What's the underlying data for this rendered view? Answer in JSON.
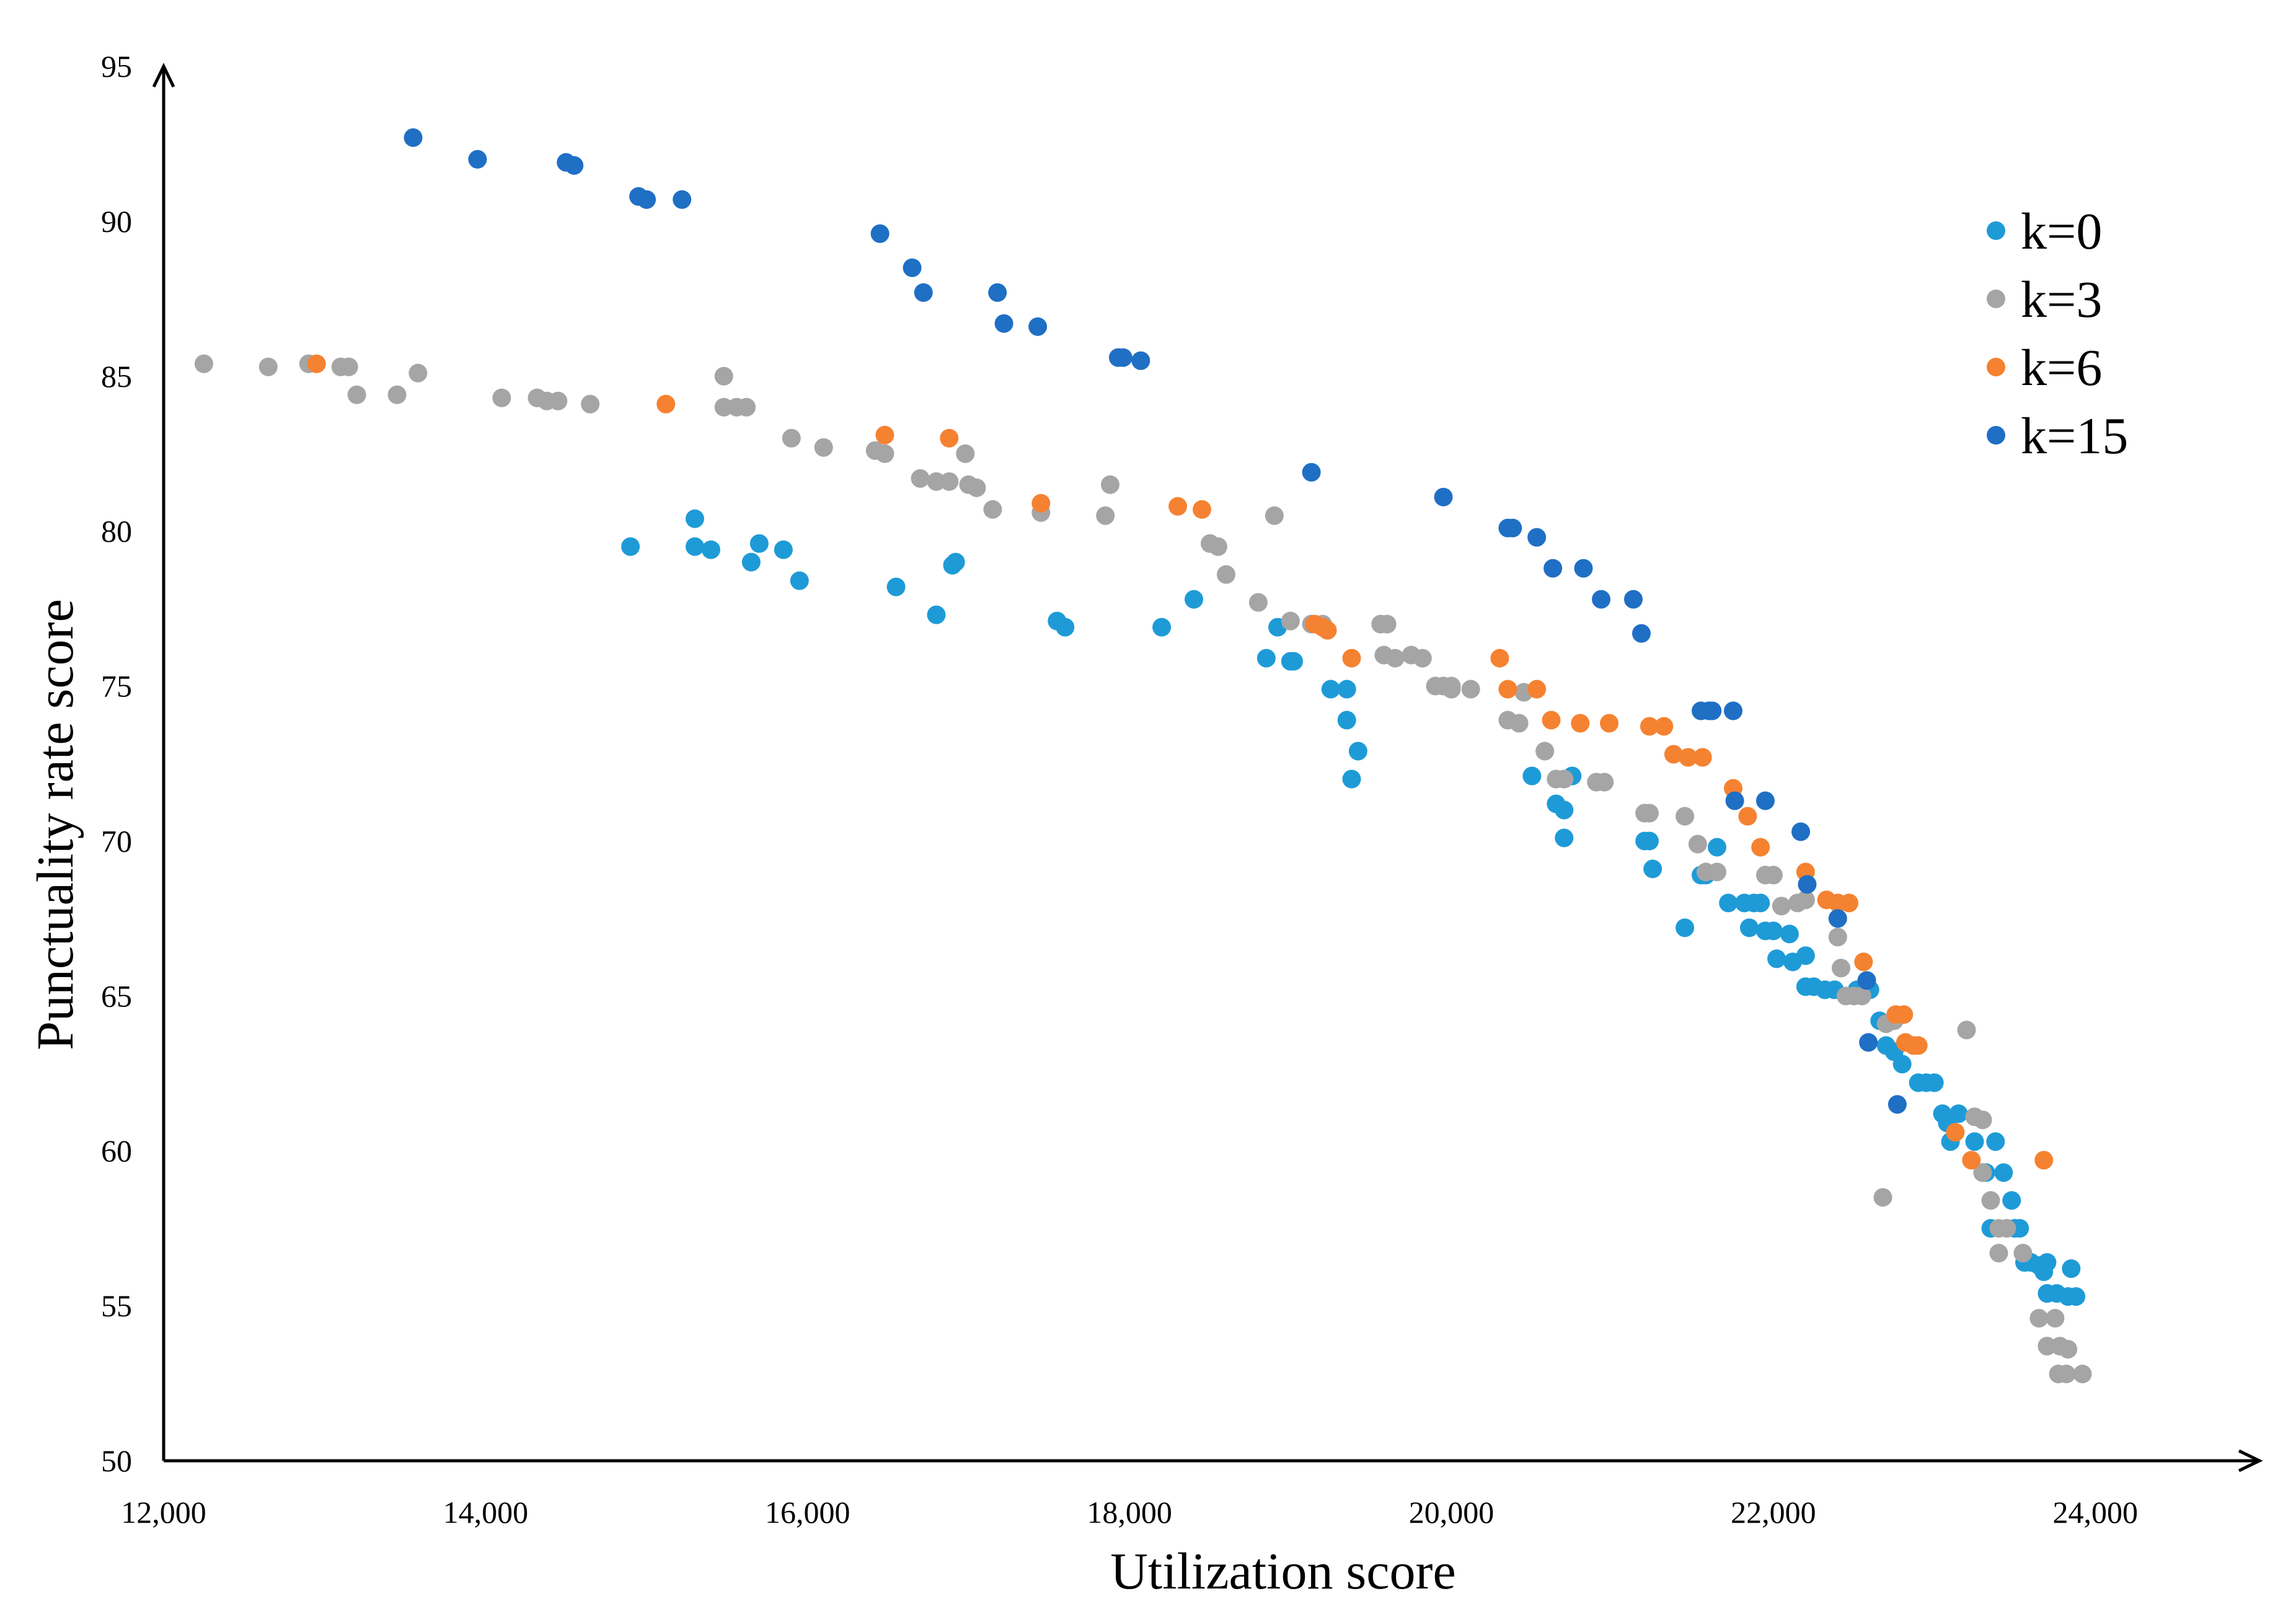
{
  "chart_data": {
    "type": "scatter",
    "title": "",
    "xlabel": "Utilization score",
    "ylabel": "Punctuality rate score",
    "xlim": [
      12000,
      25000
    ],
    "ylim": [
      50,
      95
    ],
    "xticks": [
      12000,
      14000,
      16000,
      18000,
      20000,
      22000,
      24000
    ],
    "xtick_labels": [
      "12,000",
      "14,000",
      "16,000",
      "18,000",
      "20,000",
      "22,000",
      "24,000"
    ],
    "yticks": [
      50,
      55,
      60,
      65,
      70,
      75,
      80,
      85,
      90,
      95
    ],
    "ytick_labels": [
      "50",
      "55",
      "60",
      "65",
      "70",
      "75",
      "80",
      "85",
      "90",
      "95"
    ],
    "grid": false,
    "legend_position": "top-right",
    "series": [
      {
        "name": "k=0",
        "color": "#1E9BD7",
        "points": [
          [
            14900,
            79.5
          ],
          [
            15300,
            80.4
          ],
          [
            15300,
            79.5
          ],
          [
            15400,
            79.4
          ],
          [
            15650,
            79.0
          ],
          [
            15700,
            79.6
          ],
          [
            15850,
            79.4
          ],
          [
            15950,
            78.4
          ],
          [
            16550,
            78.2
          ],
          [
            16800,
            77.3
          ],
          [
            16900,
            78.9
          ],
          [
            16920,
            79.0
          ],
          [
            17550,
            77.1
          ],
          [
            17600,
            76.9
          ],
          [
            18200,
            76.9
          ],
          [
            18400,
            77.8
          ],
          [
            18850,
            75.9
          ],
          [
            18920,
            76.9
          ],
          [
            19000,
            75.8
          ],
          [
            19020,
            75.8
          ],
          [
            19250,
            74.9
          ],
          [
            19350,
            74.9
          ],
          [
            19350,
            73.9
          ],
          [
            19380,
            72.0
          ],
          [
            19420,
            72.9
          ],
          [
            20500,
            72.1
          ],
          [
            20650,
            71.2
          ],
          [
            20700,
            71.0
          ],
          [
            20700,
            70.1
          ],
          [
            20750,
            72.1
          ],
          [
            21200,
            70.0
          ],
          [
            21230,
            70.0
          ],
          [
            21250,
            69.1
          ],
          [
            21450,
            67.2
          ],
          [
            21550,
            68.9
          ],
          [
            21580,
            68.9
          ],
          [
            21650,
            69.8
          ],
          [
            21720,
            68.0
          ],
          [
            21820,
            68.0
          ],
          [
            21850,
            67.2
          ],
          [
            21880,
            68.0
          ],
          [
            21920,
            68.0
          ],
          [
            21950,
            67.1
          ],
          [
            22000,
            67.1
          ],
          [
            22020,
            66.2
          ],
          [
            22100,
            67.0
          ],
          [
            22120,
            66.1
          ],
          [
            22200,
            66.3
          ],
          [
            22200,
            65.3
          ],
          [
            22250,
            65.3
          ],
          [
            22320,
            65.2
          ],
          [
            22380,
            65.2
          ],
          [
            22520,
            65.2
          ],
          [
            22600,
            65.2
          ],
          [
            22660,
            64.2
          ],
          [
            22700,
            63.4
          ],
          [
            22750,
            63.2
          ],
          [
            22800,
            62.8
          ],
          [
            22900,
            62.2
          ],
          [
            22950,
            62.2
          ],
          [
            23000,
            62.2
          ],
          [
            23050,
            61.2
          ],
          [
            23080,
            60.9
          ],
          [
            23100,
            60.3
          ],
          [
            23150,
            61.2
          ],
          [
            23250,
            60.3
          ],
          [
            23300,
            59.3
          ],
          [
            23320,
            59.3
          ],
          [
            23350,
            57.5
          ],
          [
            23380,
            60.3
          ],
          [
            23430,
            59.3
          ],
          [
            23480,
            58.4
          ],
          [
            23500,
            57.5
          ],
          [
            23530,
            57.5
          ],
          [
            23560,
            56.4
          ],
          [
            23600,
            56.4
          ],
          [
            23650,
            56.3
          ],
          [
            23680,
            56.1
          ],
          [
            23700,
            56.4
          ],
          [
            23700,
            55.4
          ],
          [
            23760,
            55.4
          ],
          [
            23830,
            55.3
          ],
          [
            23850,
            56.2
          ],
          [
            23880,
            55.3
          ]
        ]
      },
      {
        "name": "k=3",
        "color": "#A5A5A5",
        "points": [
          [
            12250,
            85.4
          ],
          [
            12650,
            85.3
          ],
          [
            12900,
            85.4
          ],
          [
            13100,
            85.3
          ],
          [
            13150,
            85.3
          ],
          [
            13200,
            84.4
          ],
          [
            13450,
            84.4
          ],
          [
            13580,
            85.1
          ],
          [
            14100,
            84.3
          ],
          [
            14320,
            84.3
          ],
          [
            14380,
            84.2
          ],
          [
            14450,
            84.2
          ],
          [
            14650,
            84.1
          ],
          [
            15480,
            85.0
          ],
          [
            15480,
            84.0
          ],
          [
            15560,
            84.0
          ],
          [
            15620,
            84.0
          ],
          [
            15900,
            83.0
          ],
          [
            16100,
            82.7
          ],
          [
            16420,
            82.6
          ],
          [
            16480,
            82.5
          ],
          [
            16700,
            81.7
          ],
          [
            16800,
            81.6
          ],
          [
            16880,
            81.6
          ],
          [
            16980,
            82.5
          ],
          [
            17000,
            81.5
          ],
          [
            17050,
            81.4
          ],
          [
            17150,
            80.7
          ],
          [
            17450,
            80.6
          ],
          [
            17850,
            80.5
          ],
          [
            17880,
            81.5
          ],
          [
            18500,
            79.6
          ],
          [
            18550,
            79.5
          ],
          [
            18600,
            78.6
          ],
          [
            18800,
            77.7
          ],
          [
            18900,
            80.5
          ],
          [
            19000,
            77.1
          ],
          [
            19130,
            77.0
          ],
          [
            19200,
            77.0
          ],
          [
            19560,
            77.0
          ],
          [
            19600,
            77.0
          ],
          [
            19580,
            76.0
          ],
          [
            19650,
            75.9
          ],
          [
            19750,
            76.0
          ],
          [
            19820,
            75.9
          ],
          [
            19900,
            75.0
          ],
          [
            19950,
            75.0
          ],
          [
            20000,
            75.0
          ],
          [
            20000,
            74.9
          ],
          [
            20120,
            74.9
          ],
          [
            20350,
            73.9
          ],
          [
            20420,
            73.8
          ],
          [
            20450,
            74.8
          ],
          [
            20580,
            72.9
          ],
          [
            20650,
            72.0
          ],
          [
            20700,
            72.0
          ],
          [
            20900,
            71.9
          ],
          [
            20950,
            71.9
          ],
          [
            21200,
            70.9
          ],
          [
            21230,
            70.9
          ],
          [
            21450,
            70.8
          ],
          [
            21530,
            69.9
          ],
          [
            21580,
            69.0
          ],
          [
            21650,
            69.0
          ],
          [
            21950,
            68.9
          ],
          [
            22000,
            68.9
          ],
          [
            22050,
            67.9
          ],
          [
            22150,
            68.0
          ],
          [
            22200,
            68.1
          ],
          [
            22400,
            66.9
          ],
          [
            22420,
            65.9
          ],
          [
            22450,
            65.0
          ],
          [
            22500,
            65.0
          ],
          [
            22550,
            65.0
          ],
          [
            22700,
            64.1
          ],
          [
            22750,
            64.2
          ],
          [
            22680,
            58.5
          ],
          [
            23200,
            63.9
          ],
          [
            23250,
            61.1
          ],
          [
            23300,
            61.0
          ],
          [
            23300,
            59.3
          ],
          [
            23350,
            58.4
          ],
          [
            23400,
            57.5
          ],
          [
            23400,
            56.7
          ],
          [
            23450,
            57.5
          ],
          [
            23550,
            56.7
          ],
          [
            23650,
            54.6
          ],
          [
            23700,
            53.7
          ],
          [
            23750,
            54.6
          ],
          [
            23780,
            53.7
          ],
          [
            23830,
            53.6
          ],
          [
            23770,
            52.8
          ],
          [
            23820,
            52.8
          ],
          [
            23920,
            52.8
          ]
        ]
      },
      {
        "name": "k=6",
        "color": "#F58231",
        "points": [
          [
            12950,
            85.4
          ],
          [
            15120,
            84.1
          ],
          [
            16480,
            83.1
          ],
          [
            16880,
            83.0
          ],
          [
            17450,
            80.9
          ],
          [
            18300,
            80.8
          ],
          [
            18450,
            80.7
          ],
          [
            19150,
            77.0
          ],
          [
            19200,
            76.9
          ],
          [
            19230,
            76.8
          ],
          [
            19380,
            75.9
          ],
          [
            20300,
            75.9
          ],
          [
            20350,
            74.9
          ],
          [
            20530,
            74.9
          ],
          [
            20620,
            73.9
          ],
          [
            20800,
            73.8
          ],
          [
            20980,
            73.8
          ],
          [
            21230,
            73.7
          ],
          [
            21320,
            73.7
          ],
          [
            21380,
            72.8
          ],
          [
            21470,
            72.7
          ],
          [
            21560,
            72.7
          ],
          [
            21750,
            71.7
          ],
          [
            21840,
            70.8
          ],
          [
            21920,
            69.8
          ],
          [
            22200,
            69.0
          ],
          [
            22330,
            68.1
          ],
          [
            22400,
            68.0
          ],
          [
            22470,
            68.0
          ],
          [
            22560,
            66.1
          ],
          [
            22760,
            64.4
          ],
          [
            22810,
            64.4
          ],
          [
            22820,
            63.5
          ],
          [
            22870,
            63.4
          ],
          [
            22900,
            63.4
          ],
          [
            23130,
            60.6
          ],
          [
            23230,
            59.7
          ],
          [
            23680,
            59.7
          ]
        ]
      },
      {
        "name": "k=15",
        "color": "#1F6FC5",
        "points": [
          [
            13550,
            92.7
          ],
          [
            13950,
            92.0
          ],
          [
            14500,
            91.9
          ],
          [
            14550,
            91.8
          ],
          [
            14950,
            90.8
          ],
          [
            15000,
            90.7
          ],
          [
            15220,
            90.7
          ],
          [
            16450,
            89.6
          ],
          [
            16650,
            88.5
          ],
          [
            16720,
            87.7
          ],
          [
            17180,
            87.7
          ],
          [
            17220,
            86.7
          ],
          [
            17430,
            86.6
          ],
          [
            17930,
            85.6
          ],
          [
            17960,
            85.6
          ],
          [
            18070,
            85.5
          ],
          [
            19130,
            81.9
          ],
          [
            19950,
            81.1
          ],
          [
            20350,
            80.1
          ],
          [
            20380,
            80.1
          ],
          [
            20530,
            79.8
          ],
          [
            20630,
            78.8
          ],
          [
            20820,
            78.8
          ],
          [
            20930,
            77.8
          ],
          [
            21130,
            77.8
          ],
          [
            21180,
            76.7
          ],
          [
            21550,
            74.2
          ],
          [
            21600,
            74.2
          ],
          [
            21620,
            74.2
          ],
          [
            21750,
            74.2
          ],
          [
            21760,
            71.3
          ],
          [
            21950,
            71.3
          ],
          [
            22170,
            70.3
          ],
          [
            22210,
            68.6
          ],
          [
            22400,
            67.5
          ],
          [
            22580,
            65.5
          ],
          [
            22590,
            63.5
          ],
          [
            22770,
            61.5
          ]
        ]
      }
    ]
  }
}
